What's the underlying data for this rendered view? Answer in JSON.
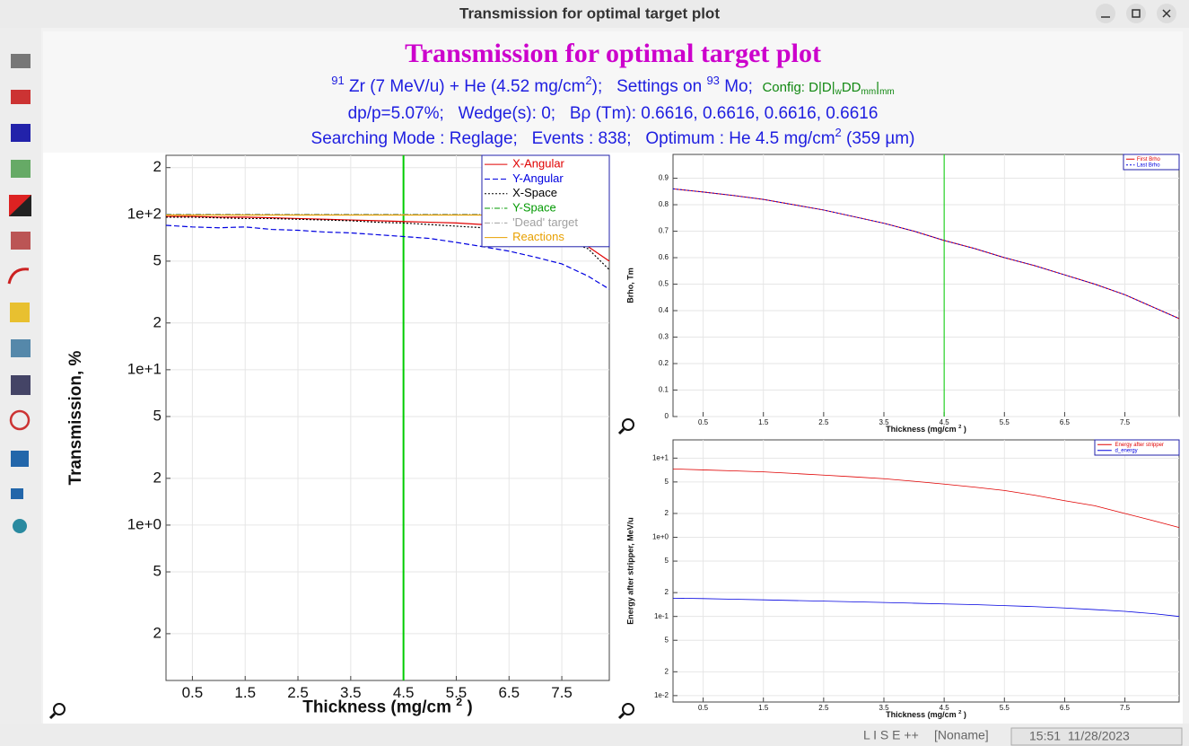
{
  "window": {
    "title": "Transmission for optimal target plot"
  },
  "header": {
    "title": "Transmission for optimal target plot",
    "line1": [
      "91",
      " Zr (7 MeV/u) + He (4.52 mg/cm",
      "2",
      ");   Settings on ",
      "93",
      " Mo;  "
    ],
    "config": [
      "Config: D|D|",
      "w",
      "DD",
      "mm",
      "|",
      "mm"
    ],
    "line2": "dp/p=5.07%;   Wedge(s): 0;   Bρ (Tm): 0.6616, 0.6616, 0.6616, 0.6616",
    "line3": [
      "Searching Mode : Reglage;   Events : 838;   Optimum : He 4.5 mg/cm",
      "2",
      " (359 µm)"
    ]
  },
  "chart_data": [
    {
      "type": "line",
      "log_y": true,
      "grid": true,
      "legend": "upper right",
      "xlabel": [
        "Thickness (mg/cm ",
        "2",
        " )"
      ],
      "ylabel": "Transmission, %",
      "x": [
        0,
        0.5,
        1,
        1.5,
        2,
        2.5,
        3,
        3.5,
        4,
        4.5,
        5,
        5.5,
        6,
        6.5,
        7,
        7.5,
        8,
        8.4
      ],
      "xlim": [
        0,
        8.4
      ],
      "xticks": [
        0.5,
        1.5,
        2.5,
        3.5,
        4.5,
        5.5,
        6.5,
        7.5
      ],
      "ylim": [
        0.1,
        240
      ],
      "yticks": [
        {
          "value": 0.2,
          "label": "2"
        },
        {
          "value": 0.5,
          "label": "5"
        },
        {
          "value": 1,
          "label": "1e+0"
        },
        2,
        5,
        {
          "value": 10,
          "label": "1e+1"
        },
        {
          "value": 20,
          "label": "2"
        },
        {
          "value": 50,
          "label": "5"
        },
        {
          "value": 100,
          "label": "1e+2"
        },
        {
          "value": 200,
          "label": "2"
        }
      ],
      "vline": 4.5,
      "vline_color": "#00cc00",
      "series": [
        {
          "name": "X-Angular",
          "color": "#e00000",
          "dash": "solid",
          "values": [
            97,
            97,
            96,
            96,
            95,
            94,
            93,
            92,
            91,
            90,
            89,
            88,
            86,
            83,
            79,
            73,
            62,
            50
          ]
        },
        {
          "name": "Y-Angular",
          "color": "#0000e0",
          "dash": "dashed",
          "values": [
            85,
            83,
            82,
            83,
            80,
            79,
            77,
            76,
            74,
            72,
            70,
            66,
            62,
            58,
            53,
            48,
            40,
            33
          ]
        },
        {
          "name": "X-Space",
          "color": "#000000",
          "dash": "dotted",
          "values": [
            96,
            96,
            95,
            94,
            94,
            93,
            92,
            91,
            89,
            88,
            86,
            84,
            82,
            79,
            75,
            70,
            60,
            44
          ]
        },
        {
          "name": "Y-Space",
          "color": "#009900",
          "dash": "dashdot",
          "values": [
            100,
            100,
            100,
            100,
            100,
            100,
            100,
            100,
            100,
            100,
            100,
            100,
            100,
            100,
            100,
            100,
            100,
            100
          ]
        },
        {
          "name": "'Dead' target",
          "color": "#a0a0a0",
          "dash": "dashdot",
          "values": [
            100,
            100,
            100,
            100,
            100,
            100,
            100,
            100,
            100,
            100,
            100,
            100,
            100,
            100,
            100,
            100,
            100,
            100
          ]
        },
        {
          "name": "Reactions",
          "color": "#e8a000",
          "dash": "solid",
          "values": [
            99,
            99,
            99,
            99,
            99,
            99,
            99,
            99,
            99,
            99,
            99,
            99,
            99,
            99,
            99,
            99,
            99,
            99
          ]
        }
      ]
    },
    {
      "type": "line",
      "log_y": false,
      "grid": true,
      "legend": "upper right",
      "xlabel": [
        "Thickness (mg/cm ",
        "2",
        " )"
      ],
      "ylabel": "Brho, Tm",
      "x": [
        0,
        0.5,
        1,
        1.5,
        2,
        2.5,
        3,
        3.5,
        4,
        4.5,
        5,
        5.5,
        6,
        6.5,
        7,
        7.5,
        8,
        8.4
      ],
      "xlim": [
        0,
        8.4
      ],
      "xticks": [
        0.5,
        1.5,
        2.5,
        3.5,
        4.5,
        5.5,
        6.5,
        7.5
      ],
      "ylim": [
        0,
        0.99
      ],
      "yticks": [
        0,
        0.1,
        0.2,
        0.3,
        0.4,
        0.5,
        0.6,
        0.7,
        0.8,
        0.9
      ],
      "vline": 4.5,
      "vline_color": "#00cc00",
      "series": [
        {
          "name": "First Brho",
          "color": "#e00000",
          "dash": "solid",
          "values": [
            0.86,
            0.848,
            0.835,
            0.82,
            0.8,
            0.78,
            0.755,
            0.73,
            0.7,
            0.665,
            0.635,
            0.6,
            0.57,
            0.535,
            0.5,
            0.46,
            0.41,
            0.37
          ]
        },
        {
          "name": "Last Brho",
          "color": "#0000e0",
          "dash": "dotted",
          "values": [
            0.86,
            0.848,
            0.835,
            0.82,
            0.8,
            0.78,
            0.755,
            0.73,
            0.7,
            0.665,
            0.635,
            0.6,
            0.57,
            0.535,
            0.5,
            0.46,
            0.41,
            0.37
          ]
        }
      ]
    },
    {
      "type": "line",
      "log_y": true,
      "grid": true,
      "legend": "upper right",
      "xlabel": [
        "Thickness (mg/cm ",
        "2",
        " )"
      ],
      "ylabel": "Energy after stripper, MeV/u",
      "x": [
        0,
        0.5,
        1,
        1.5,
        2,
        2.5,
        3,
        3.5,
        4,
        4.5,
        5,
        5.5,
        6,
        6.5,
        7,
        7.5,
        8,
        8.4
      ],
      "xlim": [
        0,
        8.4
      ],
      "xticks": [
        0.5,
        1.5,
        2.5,
        3.5,
        4.5,
        5.5,
        6.5,
        7.5
      ],
      "ylim": [
        0.0083,
        17
      ],
      "yticks": [
        {
          "value": 0.01,
          "label": "1e-2"
        },
        {
          "value": 0.02,
          "label": "2"
        },
        {
          "value": 0.05,
          "label": "5"
        },
        {
          "value": 0.1,
          "label": "1e-1"
        },
        {
          "value": 0.2,
          "label": "2"
        },
        {
          "value": 0.5,
          "label": "5"
        },
        {
          "value": 1,
          "label": "1e+0"
        },
        2,
        5,
        {
          "value": 10,
          "label": "1e+1"
        }
      ],
      "series": [
        {
          "name": "Energy after stripper",
          "color": "#e00000",
          "dash": "solid",
          "values": [
            7.3,
            7.1,
            6.9,
            6.7,
            6.4,
            6.1,
            5.8,
            5.5,
            5.1,
            4.7,
            4.3,
            3.9,
            3.4,
            2.9,
            2.5,
            2,
            1.6,
            1.33
          ]
        },
        {
          "name": "d_energy",
          "color": "#0000e0",
          "dash": "solid",
          "values": [
            0.17,
            0.168,
            0.165,
            0.162,
            0.159,
            0.156,
            0.153,
            0.15,
            0.147,
            0.144,
            0.141,
            0.137,
            0.133,
            0.128,
            0.122,
            0.116,
            0.108,
            0.1
          ]
        }
      ]
    }
  ],
  "status_bar": {
    "app": "L I S E ++",
    "file": "[Noname]",
    "time": "15:51  11/28/2023"
  }
}
